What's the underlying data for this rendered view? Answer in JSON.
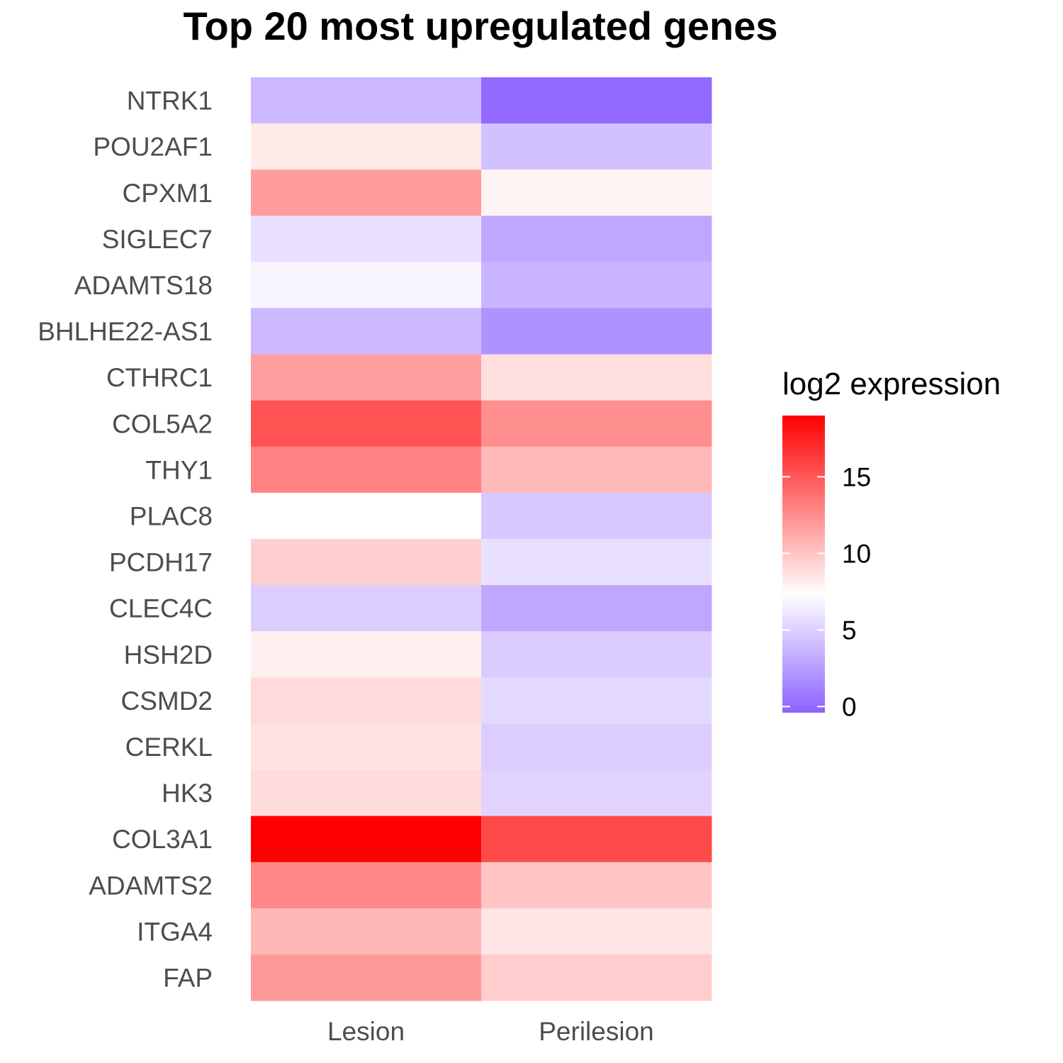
{
  "chart_data": {
    "type": "heatmap",
    "title": "Top 20 most upregulated genes",
    "xlabel": "",
    "ylabel": "",
    "columns": [
      "Lesion",
      "Perilesion"
    ],
    "rows": [
      "NTRK1",
      "POU2AF1",
      "CPXM1",
      "SIGLEC7",
      "ADAMTS18",
      "BHLHE22-AS1",
      "CTHRC1",
      "COL5A2",
      "THY1",
      "PLAC8",
      "PCDH17",
      "CLEC4C",
      "HSH2D",
      "CSMD2",
      "CERKL",
      "HK3",
      "COL3A1",
      "ADAMTS2",
      "ITGA4",
      "FAP"
    ],
    "values": [
      [
        3.9,
        0.0
      ],
      [
        8.3,
        4.3
      ],
      [
        11.8,
        7.8
      ],
      [
        5.8,
        3.0
      ],
      [
        6.8,
        3.7
      ],
      [
        3.9,
        2.0
      ],
      [
        11.7,
        8.8
      ],
      [
        15.2,
        12.5
      ],
      [
        13.0,
        10.5
      ],
      [
        7.3,
        4.6
      ],
      [
        9.5,
        5.8
      ],
      [
        4.9,
        3.0
      ],
      [
        8.0,
        4.8
      ],
      [
        9.0,
        5.5
      ],
      [
        8.6,
        4.9
      ],
      [
        8.9,
        5.2
      ],
      [
        19.0,
        15.6
      ],
      [
        12.8,
        10.0
      ],
      [
        10.6,
        8.5
      ],
      [
        12.0,
        9.6
      ]
    ],
    "legend": {
      "title": "log2 expression",
      "ticks": [
        0,
        5,
        10,
        15
      ],
      "min": -0.4,
      "max": 19.0,
      "position": "right"
    },
    "colors": {
      "low": "#8c61ff",
      "mid": "#ffffff",
      "high": "#ff0000",
      "mid_value": 7.3
    },
    "grid": false
  }
}
